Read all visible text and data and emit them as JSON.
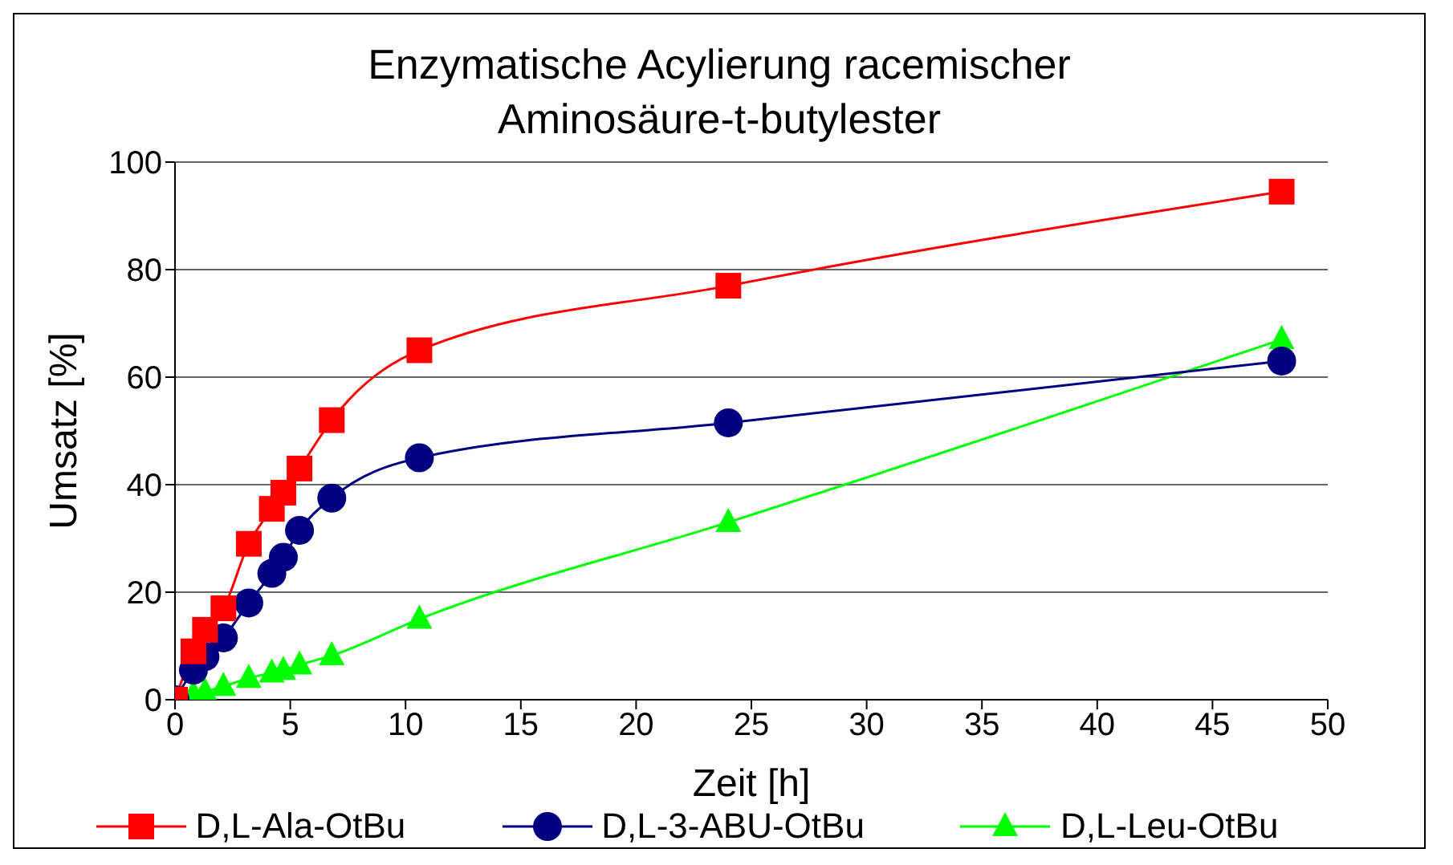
{
  "chart_data": {
    "type": "line",
    "title": "Enzymatische Acylierung racemischer Aminosäure-t-butylester",
    "xlabel": "Zeit [h]",
    "ylabel": "Umsatz [%]",
    "x": [
      0,
      0.8,
      1.3,
      2.1,
      3.2,
      4.2,
      4.7,
      5.4,
      6.8,
      10.6,
      24,
      48
    ],
    "series": [
      {
        "name": "D,L-Ala-OtBu",
        "color": "#ff0000",
        "marker": "square",
        "values": [
          0,
          9,
          13,
          17,
          29,
          35.5,
          38.5,
          43,
          52,
          65,
          77,
          94.5
        ]
      },
      {
        "name": "D,L-3-ABU-OtBu",
        "color": "#000080",
        "marker": "circle",
        "values": [
          0,
          5.5,
          8,
          11.5,
          18,
          23.5,
          26.5,
          31.5,
          37.5,
          45,
          51.5,
          63
        ]
      },
      {
        "name": "D,L-Leu-OtBu",
        "color": "#00ff00",
        "marker": "triangle",
        "values": [
          0,
          1,
          1.5,
          2.5,
          4,
          5,
          5.5,
          6.5,
          8.2,
          15,
          33,
          67
        ]
      }
    ],
    "xlim": [
      0,
      50
    ],
    "xticks": [
      0,
      5,
      10,
      15,
      20,
      25,
      30,
      35,
      40,
      45,
      50
    ],
    "ylim": [
      0,
      100
    ],
    "yticks": [
      0,
      20,
      40,
      60,
      80,
      100
    ],
    "grid": "y",
    "legend": "bottom"
  }
}
